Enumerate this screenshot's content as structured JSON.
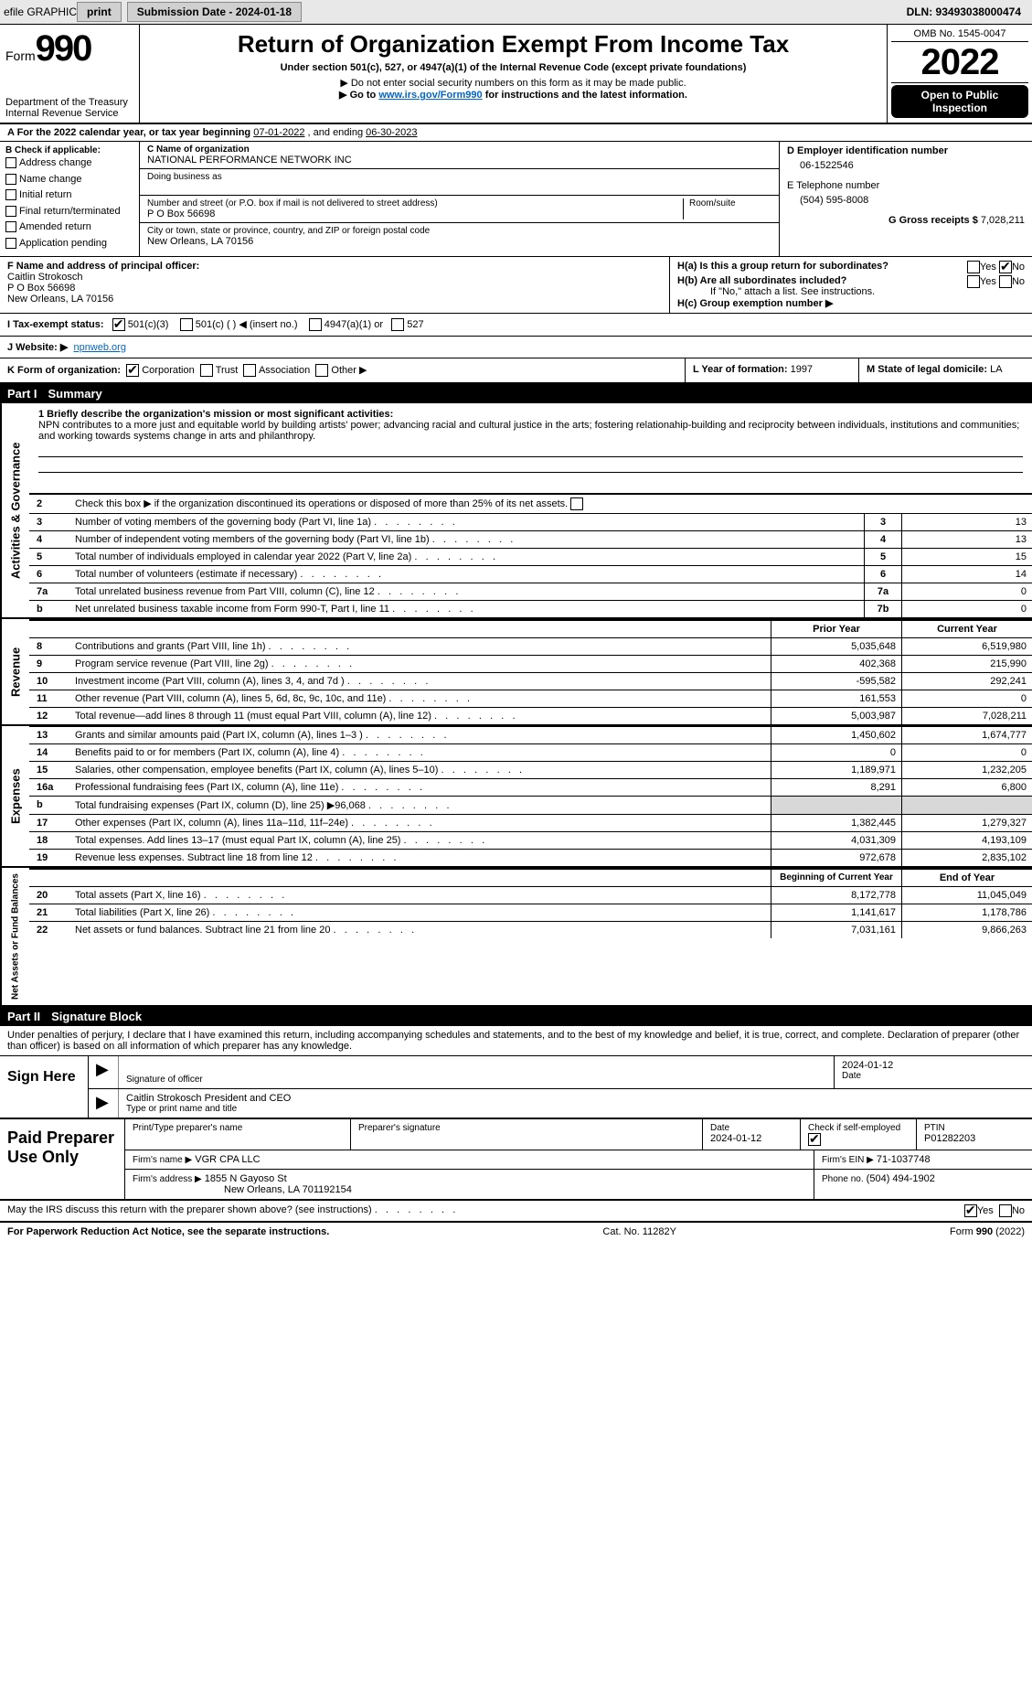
{
  "topbar": {
    "efile": "efile GRAPHIC",
    "print": "print",
    "subdate_label": "Submission Date - 2024-01-18",
    "dln": "DLN: 93493038000474"
  },
  "header": {
    "form_label": "Form",
    "form_num": "990",
    "dept": "Department of the Treasury\nInternal Revenue Service",
    "title": "Return of Organization Exempt From Income Tax",
    "sub1": "Under section 501(c), 527, or 4947(a)(1) of the Internal Revenue Code (except private foundations)",
    "sub2": "▶ Do not enter social security numbers on this form as it may be made public.",
    "sub3_pre": "▶ Go to ",
    "sub3_link": "www.irs.gov/Form990",
    "sub3_post": " for instructions and the latest information.",
    "omb": "OMB No. 1545-0047",
    "year": "2022",
    "open": "Open to Public Inspection"
  },
  "lineA": {
    "text_pre": "A For the 2022 calendar year, or tax year beginning ",
    "begin": "07-01-2022",
    "mid": " , and ending ",
    "end": "06-30-2023"
  },
  "checkB": {
    "label": "B Check if applicable:",
    "addr": "Address change",
    "name": "Name change",
    "initial": "Initial return",
    "final": "Final return/terminated",
    "amended": "Amended return",
    "app": "Application pending"
  },
  "orgC": {
    "label": "C Name of organization",
    "name": "NATIONAL PERFORMANCE NETWORK INC",
    "dba_label": "Doing business as",
    "dba": "",
    "street_label": "Number and street (or P.O. box if mail is not delivered to street address)",
    "room_label": "Room/suite",
    "street": "P O Box 56698",
    "city_label": "City or town, state or province, country, and ZIP or foreign postal code",
    "city": "New Orleans, LA  70156"
  },
  "right": {
    "ein_label": "D Employer identification number",
    "ein": "06-1522546",
    "phone_label": "E Telephone number",
    "phone": "(504) 595-8008",
    "gross_label": "G Gross receipts $",
    "gross": "7,028,211"
  },
  "sectionF": {
    "label": "F Name and address of principal officer:",
    "name": "Caitlin Strokosch",
    "addr1": "P O Box 56698",
    "addr2": "New Orleans, LA  70156"
  },
  "sectionH": {
    "ha": "H(a)  Is this a group return for subordinates?",
    "hb": "H(b)  Are all subordinates included?",
    "hb_note": "If \"No,\" attach a list. See instructions.",
    "hc": "H(c)  Group exemption number ▶",
    "yes": "Yes",
    "no": "No"
  },
  "taxstatus": {
    "label": "I Tax-exempt status:",
    "c3": "501(c)(3)",
    "c": "501(c) (  ) ◀ (insert no.)",
    "a1": "4947(a)(1) or",
    "s527": "527"
  },
  "website": {
    "label": "J Website: ▶",
    "value": "npnweb.org"
  },
  "formorg": {
    "k_label": "K Form of organization:",
    "corp": "Corporation",
    "trust": "Trust",
    "assoc": "Association",
    "other": "Other ▶",
    "l_label": "L Year of formation:",
    "l_val": "1997",
    "m_label": "M State of legal domicile:",
    "m_val": "LA"
  },
  "part1": {
    "part": "Part I",
    "title": "Summary",
    "tab_gov": "Activities & Governance",
    "tab_rev": "Revenue",
    "tab_exp": "Expenses",
    "tab_net": "Net Assets or Fund Balances",
    "line1_label": "1 Briefly describe the organization's mission or most significant activities:",
    "line1_text": "NPN contributes to a more just and equitable world by building artists' power; advancing racial and cultural justice in the arts; fostering relationahip-building and reciprocity between individuals, institutions and communities; and working towards systems change in arts and philanthropy.",
    "line2": "Check this box ▶    if the organization discontinued its operations or disposed of more than 25% of its net assets.",
    "rows_box": [
      {
        "no": "3",
        "label": "Number of voting members of the governing body (Part VI, line 1a)",
        "box": "3",
        "val": "13"
      },
      {
        "no": "4",
        "label": "Number of independent voting members of the governing body (Part VI, line 1b)",
        "box": "4",
        "val": "13"
      },
      {
        "no": "5",
        "label": "Total number of individuals employed in calendar year 2022 (Part V, line 2a)",
        "box": "5",
        "val": "15"
      },
      {
        "no": "6",
        "label": "Total number of volunteers (estimate if necessary)",
        "box": "6",
        "val": "14"
      },
      {
        "no": "7a",
        "label": "Total unrelated business revenue from Part VIII, column (C), line 12",
        "box": "7a",
        "val": "0"
      },
      {
        "no": "b",
        "label": "Net unrelated business taxable income from Form 990-T, Part I, line 11",
        "box": "7b",
        "val": "0"
      }
    ],
    "col_prior": "Prior Year",
    "col_current": "Current Year",
    "revenue": [
      {
        "no": "8",
        "label": "Contributions and grants (Part VIII, line 1h)",
        "prior": "5,035,648",
        "cur": "6,519,980"
      },
      {
        "no": "9",
        "label": "Program service revenue (Part VIII, line 2g)",
        "prior": "402,368",
        "cur": "215,990"
      },
      {
        "no": "10",
        "label": "Investment income (Part VIII, column (A), lines 3, 4, and 7d )",
        "prior": "-595,582",
        "cur": "292,241"
      },
      {
        "no": "11",
        "label": "Other revenue (Part VIII, column (A), lines 5, 6d, 8c, 9c, 10c, and 11e)",
        "prior": "161,553",
        "cur": "0"
      },
      {
        "no": "12",
        "label": "Total revenue—add lines 8 through 11 (must equal Part VIII, column (A), line 12)",
        "prior": "5,003,987",
        "cur": "7,028,211"
      }
    ],
    "expenses": [
      {
        "no": "13",
        "label": "Grants and similar amounts paid (Part IX, column (A), lines 1–3 )",
        "prior": "1,450,602",
        "cur": "1,674,777"
      },
      {
        "no": "14",
        "label": "Benefits paid to or for members (Part IX, column (A), line 4)",
        "prior": "0",
        "cur": "0"
      },
      {
        "no": "15",
        "label": "Salaries, other compensation, employee benefits (Part IX, column (A), lines 5–10)",
        "prior": "1,189,971",
        "cur": "1,232,205"
      },
      {
        "no": "16a",
        "label": "Professional fundraising fees (Part IX, column (A), line 11e)",
        "prior": "8,291",
        "cur": "6,800"
      },
      {
        "no": "b",
        "label": "Total fundraising expenses (Part IX, column (D), line 25) ▶96,068",
        "prior": "",
        "cur": "",
        "shade": true
      },
      {
        "no": "17",
        "label": "Other expenses (Part IX, column (A), lines 11a–11d, 11f–24e)",
        "prior": "1,382,445",
        "cur": "1,279,327"
      },
      {
        "no": "18",
        "label": "Total expenses. Add lines 13–17 (must equal Part IX, column (A), line 25)",
        "prior": "4,031,309",
        "cur": "4,193,109"
      },
      {
        "no": "19",
        "label": "Revenue less expenses. Subtract line 18 from line 12",
        "prior": "972,678",
        "cur": "2,835,102"
      }
    ],
    "col_begin": "Beginning of Current Year",
    "col_end": "End of Year",
    "netassets": [
      {
        "no": "20",
        "label": "Total assets (Part X, line 16)",
        "prior": "8,172,778",
        "cur": "11,045,049"
      },
      {
        "no": "21",
        "label": "Total liabilities (Part X, line 26)",
        "prior": "1,141,617",
        "cur": "1,178,786"
      },
      {
        "no": "22",
        "label": "Net assets or fund balances. Subtract line 21 from line 20",
        "prior": "7,031,161",
        "cur": "9,866,263"
      }
    ]
  },
  "part2": {
    "part": "Part II",
    "title": "Signature Block",
    "declare": "Under penalties of perjury, I declare that I have examined this return, including accompanying schedules and statements, and to the best of my knowledge and belief, it is true, correct, and complete. Declaration of preparer (other than officer) is based on all information of which preparer has any knowledge.",
    "sign_here": "Sign Here",
    "sig_officer": "Signature of officer",
    "sig_date": "Date",
    "sig_date_val": "2024-01-12",
    "sig_name": "Caitlin Strokosch  President and CEO",
    "sig_type": "Type or print name and title",
    "paid": "Paid Preparer Use Only",
    "prep_name_label": "Print/Type preparer's name",
    "prep_sig_label": "Preparer's signature",
    "prep_date_label": "Date",
    "prep_date": "2024-01-12",
    "prep_check_label": "Check         if self-employed",
    "prep_ptin_label": "PTIN",
    "prep_ptin": "P01282203",
    "firm_name_label": "Firm's name    ▶",
    "firm_name": "VGR CPA LLC",
    "firm_ein_label": "Firm's EIN ▶",
    "firm_ein": "71-1037748",
    "firm_addr_label": "Firm's address ▶",
    "firm_addr": "1855 N Gayoso St",
    "firm_addr2": "New Orleans, LA  701192154",
    "firm_phone_label": "Phone no.",
    "firm_phone": "(504) 494-1902",
    "may_irs": "May the IRS discuss this return with the preparer shown above? (see instructions)",
    "yes": "Yes",
    "no": "No"
  },
  "footer": {
    "left": "For Paperwork Reduction Act Notice, see the separate instructions.",
    "mid": "Cat. No. 11282Y",
    "right": "Form 990 (2022)"
  }
}
